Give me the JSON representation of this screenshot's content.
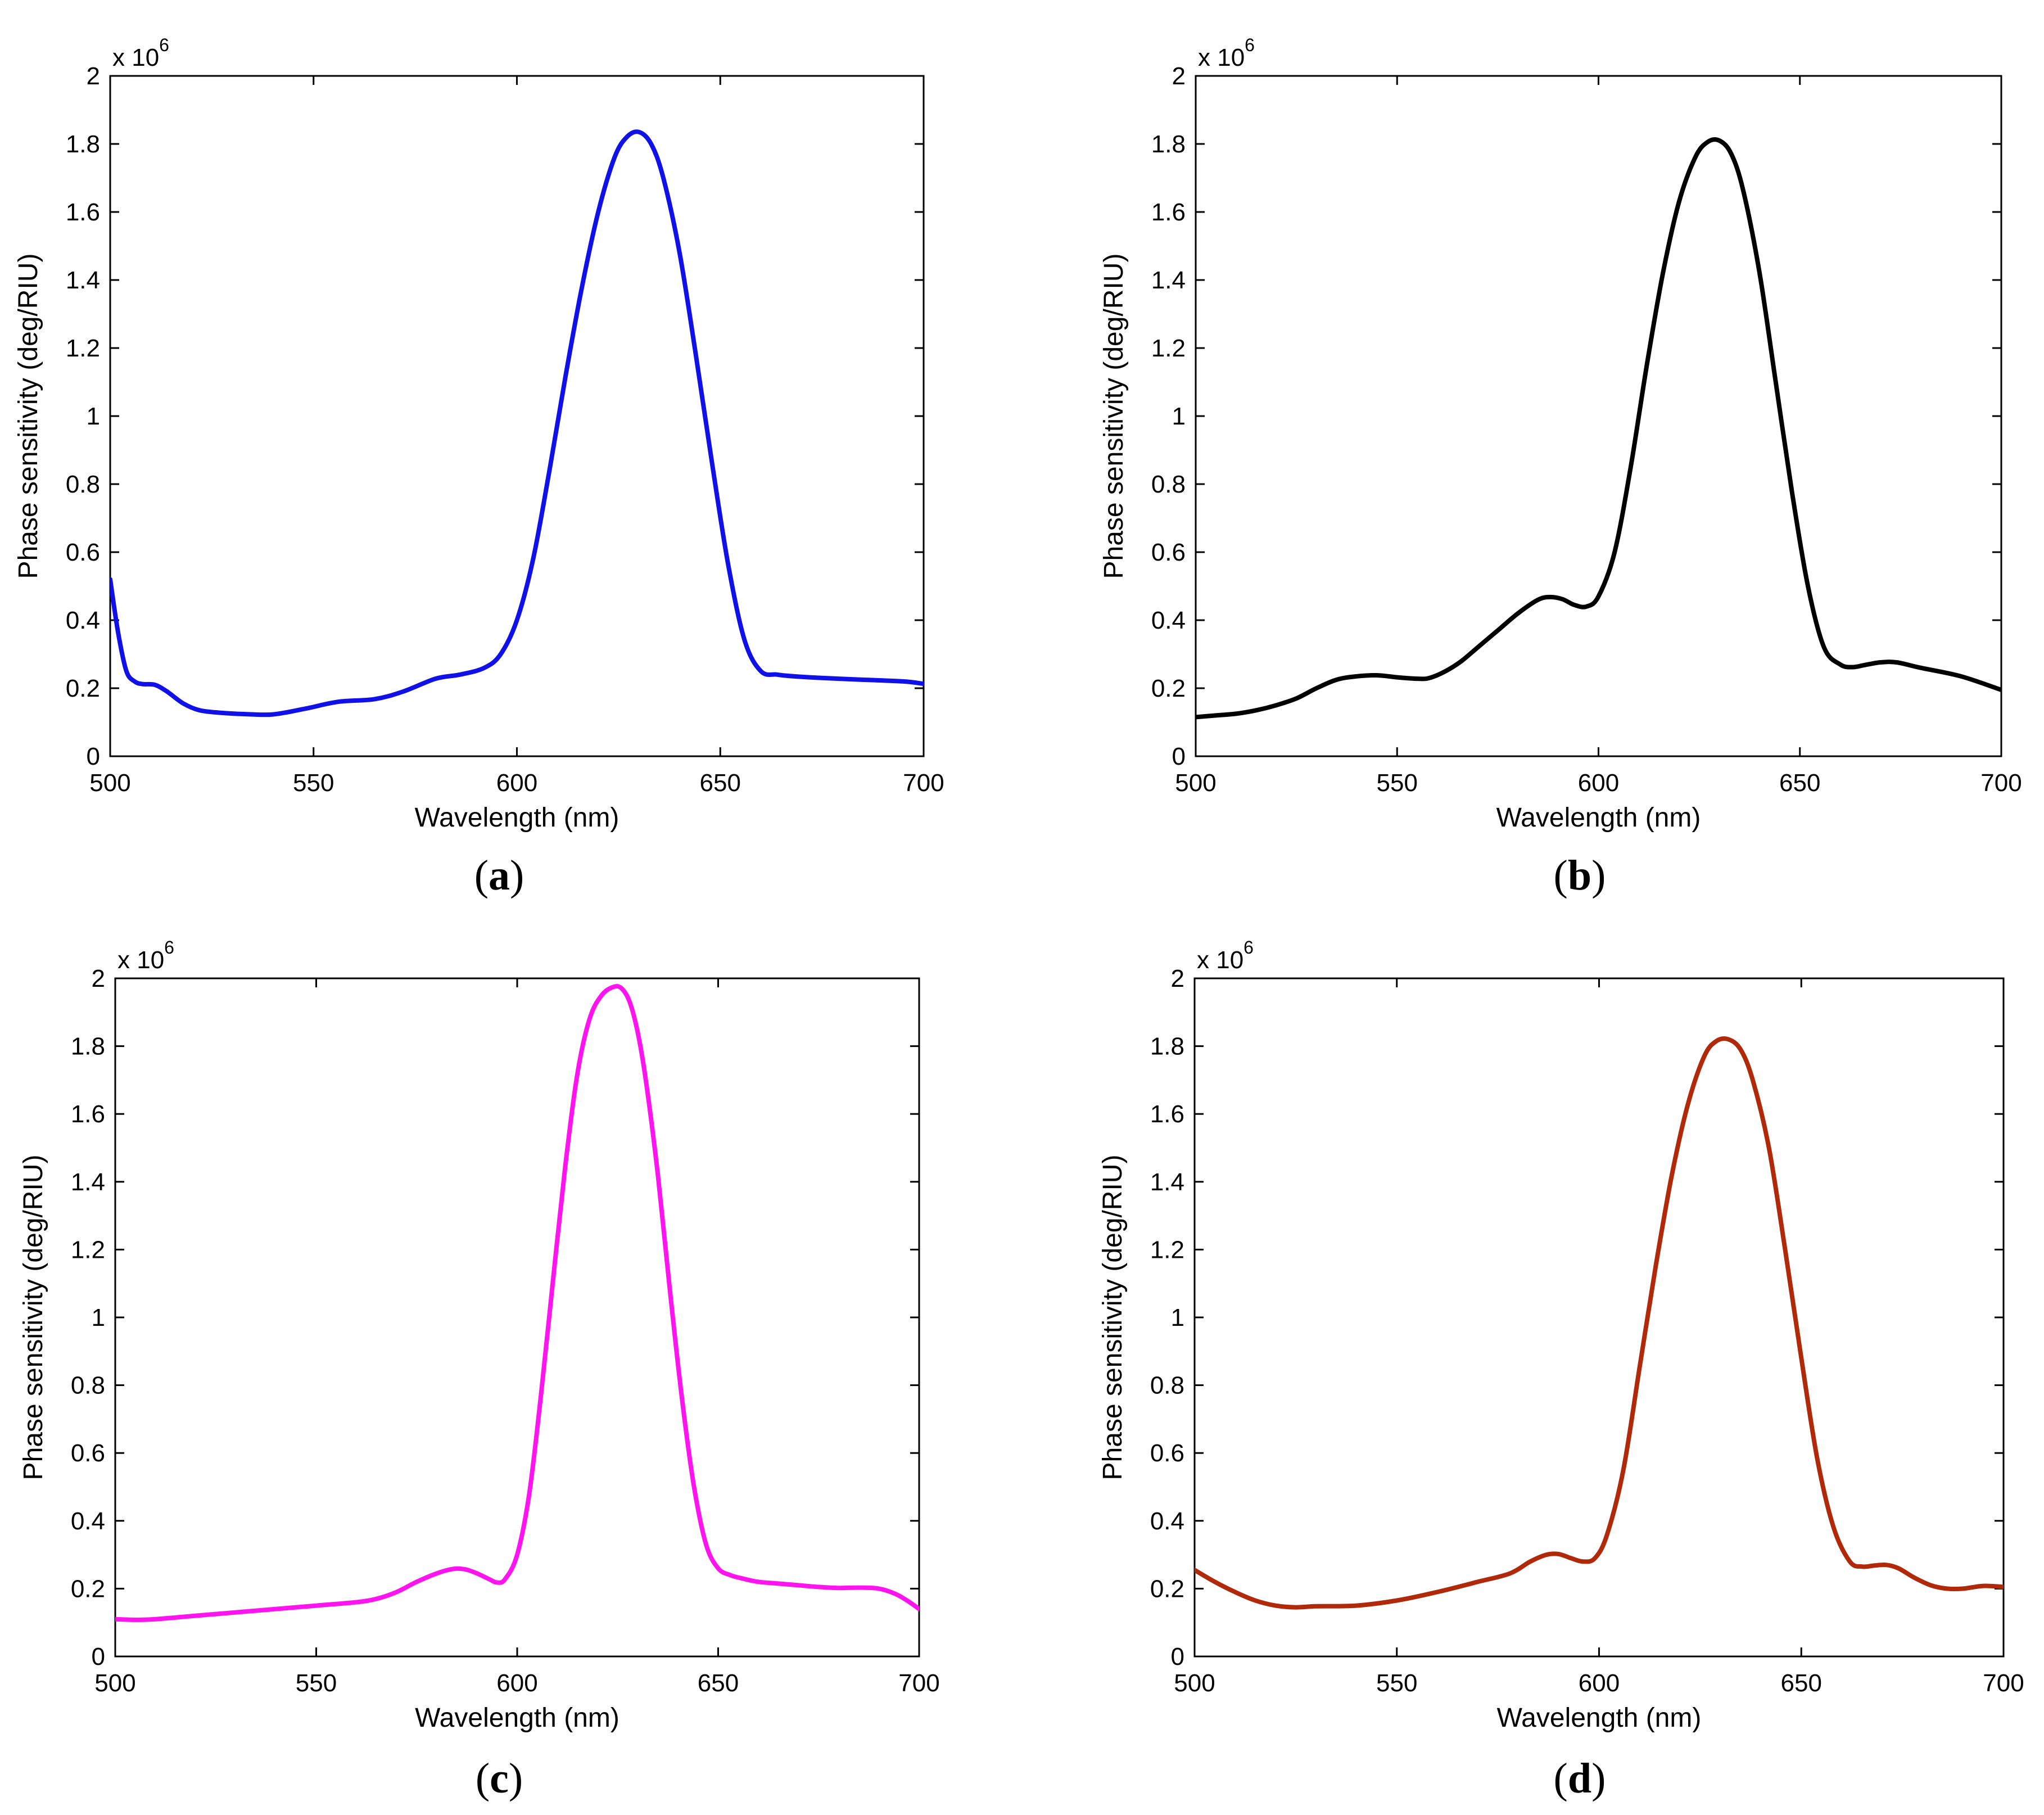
{
  "chart_data": [
    {
      "panel": "a",
      "panel_label": "a",
      "type": "line",
      "color": "#1010E8",
      "xlabel": "Wavelength (nm)",
      "ylabel": "Phase sensitivity (deg/RIU)",
      "y_multiplier_text": "x 10",
      "y_multiplier_exp": "6",
      "xlim": [
        500,
        700
      ],
      "ylim": [
        0,
        2
      ],
      "xticks": [
        500,
        550,
        600,
        650,
        700
      ],
      "yticks": [
        0,
        0.2,
        0.4,
        0.6,
        0.8,
        1,
        1.2,
        1.4,
        1.6,
        1.8,
        2
      ],
      "x": [
        500,
        502,
        504,
        506,
        508,
        511,
        514,
        518,
        522,
        527,
        533,
        540,
        548,
        556,
        565,
        572,
        580,
        586,
        592,
        596,
        600,
        604,
        608,
        612,
        616,
        620,
        624,
        627,
        630,
        633,
        636,
        640,
        644,
        648,
        652,
        656,
        660,
        664,
        668,
        675,
        685,
        695,
        700
      ],
      "y": [
        0.52,
        0.36,
        0.25,
        0.22,
        0.212,
        0.21,
        0.19,
        0.155,
        0.135,
        0.128,
        0.124,
        0.123,
        0.14,
        0.16,
        0.168,
        0.19,
        0.228,
        0.24,
        0.26,
        0.3,
        0.4,
        0.58,
        0.84,
        1.12,
        1.38,
        1.6,
        1.76,
        1.82,
        1.835,
        1.8,
        1.7,
        1.48,
        1.18,
        0.86,
        0.56,
        0.34,
        0.25,
        0.24,
        0.235,
        0.23,
        0.225,
        0.22,
        0.213
      ]
    },
    {
      "panel": "b",
      "panel_label": "b",
      "type": "line",
      "color": "#000000",
      "xlabel": "Wavelength (nm)",
      "ylabel": "Phase sensitivity (deg/RIU)",
      "y_multiplier_text": "x 10",
      "y_multiplier_exp": "6",
      "xlim": [
        500,
        700
      ],
      "ylim": [
        0,
        2
      ],
      "xticks": [
        500,
        550,
        600,
        650,
        700
      ],
      "yticks": [
        0,
        0.2,
        0.4,
        0.6,
        0.8,
        1,
        1.2,
        1.4,
        1.6,
        1.8,
        2
      ],
      "x": [
        500,
        505,
        510,
        515,
        520,
        525,
        530,
        535,
        540,
        545,
        550,
        555,
        558,
        562,
        566,
        570,
        575,
        580,
        585,
        588,
        591,
        594,
        597,
        600,
        604,
        608,
        612,
        616,
        620,
        624,
        627,
        630,
        633,
        636,
        640,
        644,
        648,
        652,
        656,
        660,
        663,
        666,
        670,
        674,
        680,
        690,
        700
      ],
      "y": [
        0.115,
        0.12,
        0.125,
        0.135,
        0.15,
        0.17,
        0.2,
        0.225,
        0.235,
        0.238,
        0.232,
        0.228,
        0.23,
        0.25,
        0.28,
        0.32,
        0.37,
        0.42,
        0.46,
        0.468,
        0.462,
        0.445,
        0.44,
        0.47,
        0.6,
        0.85,
        1.15,
        1.42,
        1.63,
        1.76,
        1.805,
        1.81,
        1.77,
        1.66,
        1.42,
        1.1,
        0.78,
        0.5,
        0.32,
        0.27,
        0.262,
        0.268,
        0.276,
        0.276,
        0.26,
        0.235,
        0.195
      ]
    },
    {
      "panel": "c",
      "panel_label": "c",
      "type": "line",
      "color": "#FF14F0",
      "xlabel": "Wavelength (nm)",
      "ylabel": "Phase sensitivity (deg/RIU)",
      "y_multiplier_text": "x 10",
      "y_multiplier_exp": "6",
      "xlim": [
        500,
        700
      ],
      "ylim": [
        0,
        2
      ],
      "xticks": [
        500,
        550,
        600,
        650,
        700
      ],
      "yticks": [
        0,
        0.2,
        0.4,
        0.6,
        0.8,
        1,
        1.2,
        1.4,
        1.6,
        1.8,
        2
      ],
      "x": [
        500,
        505,
        510,
        520,
        530,
        540,
        550,
        560,
        565,
        570,
        575,
        580,
        584,
        587,
        590,
        593,
        595,
        597,
        600,
        603,
        606,
        609,
        612,
        615,
        618,
        621,
        624,
        626,
        628,
        630,
        632,
        635,
        638,
        641,
        644,
        647,
        650,
        653,
        656,
        660,
        665,
        670,
        675,
        680,
        685,
        690,
        694,
        697,
        700
      ],
      "y": [
        0.11,
        0.108,
        0.11,
        0.12,
        0.13,
        0.14,
        0.15,
        0.16,
        0.17,
        0.19,
        0.22,
        0.245,
        0.258,
        0.257,
        0.245,
        0.228,
        0.218,
        0.228,
        0.3,
        0.48,
        0.78,
        1.12,
        1.45,
        1.72,
        1.88,
        1.95,
        1.975,
        1.97,
        1.93,
        1.84,
        1.7,
        1.42,
        1.08,
        0.76,
        0.5,
        0.33,
        0.26,
        0.24,
        0.23,
        0.22,
        0.215,
        0.21,
        0.205,
        0.202,
        0.203,
        0.2,
        0.185,
        0.165,
        0.14
      ]
    },
    {
      "panel": "d",
      "panel_label": "d",
      "type": "line",
      "color": "#B02A0A",
      "xlabel": "Wavelength (nm)",
      "ylabel": "Phase sensitivity (deg/RIU)",
      "y_multiplier_text": "x 10",
      "y_multiplier_exp": "6",
      "xlim": [
        500,
        700
      ],
      "ylim": [
        0,
        2
      ],
      "xticks": [
        500,
        550,
        600,
        650,
        700
      ],
      "yticks": [
        0,
        0.2,
        0.4,
        0.6,
        0.8,
        1,
        1.2,
        1.4,
        1.6,
        1.8,
        2
      ],
      "x": [
        500,
        505,
        510,
        515,
        520,
        525,
        530,
        540,
        550,
        560,
        570,
        578,
        583,
        587,
        590,
        593,
        596,
        599,
        602,
        606,
        610,
        614,
        618,
        622,
        626,
        629,
        632,
        635,
        638,
        642,
        646,
        650,
        654,
        658,
        662,
        665,
        668,
        671,
        674,
        678,
        682,
        686,
        690,
        695,
        700
      ],
      "y": [
        0.255,
        0.22,
        0.19,
        0.165,
        0.15,
        0.145,
        0.148,
        0.15,
        0.165,
        0.19,
        0.22,
        0.245,
        0.28,
        0.3,
        0.302,
        0.29,
        0.28,
        0.29,
        0.36,
        0.55,
        0.85,
        1.15,
        1.42,
        1.63,
        1.77,
        1.815,
        1.82,
        1.79,
        1.7,
        1.5,
        1.2,
        0.88,
        0.58,
        0.38,
        0.28,
        0.265,
        0.268,
        0.27,
        0.26,
        0.232,
        0.21,
        0.2,
        0.2,
        0.208,
        0.205
      ]
    }
  ]
}
